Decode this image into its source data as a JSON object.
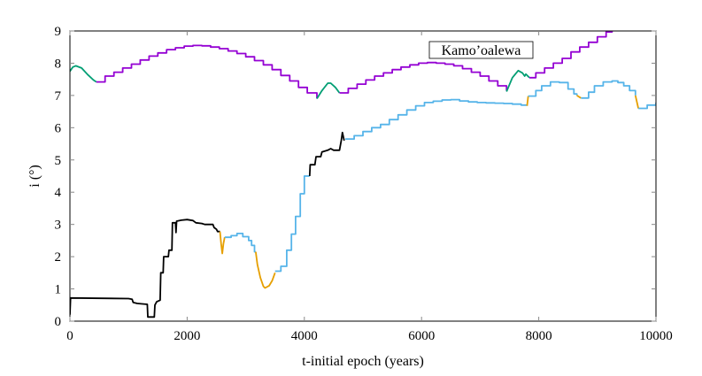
{
  "chart_data": {
    "type": "line",
    "title": "",
    "xlabel": "t-initial epoch (years)",
    "ylabel": "i (°)",
    "xlim": [
      0,
      10000
    ],
    "ylim": [
      0,
      9
    ],
    "xticks": [
      0,
      2000,
      4000,
      6000,
      8000,
      10000
    ],
    "yticks": [
      0,
      1,
      2,
      3,
      4,
      5,
      6,
      7,
      8,
      9
    ],
    "grid": false,
    "legend": {
      "text": "Kamo’oalewa",
      "placement": "top-center-right"
    },
    "colors": {
      "purple": "#9400d3",
      "green": "#009e73",
      "black": "#000000",
      "orange": "#e69f00",
      "blue": "#56b4e9"
    },
    "segments": [
      {
        "color": "green",
        "step": false,
        "points": [
          [
            0,
            7.75
          ],
          [
            50,
            7.88
          ],
          [
            100,
            7.92
          ],
          [
            200,
            7.85
          ],
          [
            300,
            7.65
          ],
          [
            400,
            7.48
          ],
          [
            450,
            7.42
          ]
        ]
      },
      {
        "color": "purple",
        "step": true,
        "points": [
          [
            450,
            7.42
          ],
          [
            600,
            7.6
          ],
          [
            750,
            7.72
          ],
          [
            900,
            7.85
          ],
          [
            1050,
            7.97
          ],
          [
            1200,
            8.1
          ],
          [
            1350,
            8.22
          ],
          [
            1500,
            8.32
          ],
          [
            1650,
            8.42
          ],
          [
            1800,
            8.48
          ],
          [
            1950,
            8.53
          ],
          [
            2100,
            8.55
          ],
          [
            2250,
            8.54
          ],
          [
            2400,
            8.5
          ],
          [
            2550,
            8.45
          ],
          [
            2700,
            8.38
          ],
          [
            2850,
            8.3
          ],
          [
            3000,
            8.2
          ],
          [
            3150,
            8.08
          ],
          [
            3300,
            7.95
          ],
          [
            3450,
            7.8
          ],
          [
            3600,
            7.62
          ],
          [
            3750,
            7.45
          ],
          [
            3900,
            7.25
          ],
          [
            4050,
            7.08
          ],
          [
            4215,
            6.9
          ]
        ]
      },
      {
        "color": "green",
        "step": false,
        "points": [
          [
            4215,
            6.9
          ],
          [
            4300,
            7.15
          ],
          [
            4400,
            7.38
          ],
          [
            4450,
            7.38
          ],
          [
            4530,
            7.25
          ],
          [
            4600,
            7.08
          ]
        ]
      },
      {
        "color": "purple",
        "step": true,
        "points": [
          [
            4600,
            7.08
          ],
          [
            4750,
            7.22
          ],
          [
            4900,
            7.35
          ],
          [
            5050,
            7.48
          ],
          [
            5200,
            7.6
          ],
          [
            5350,
            7.7
          ],
          [
            5500,
            7.8
          ],
          [
            5650,
            7.88
          ],
          [
            5800,
            7.95
          ],
          [
            5950,
            8.0
          ],
          [
            6100,
            8.02
          ],
          [
            6250,
            8.0
          ],
          [
            6400,
            7.97
          ],
          [
            6550,
            7.92
          ],
          [
            6700,
            7.83
          ],
          [
            6850,
            7.72
          ],
          [
            7000,
            7.6
          ],
          [
            7150,
            7.45
          ],
          [
            7300,
            7.3
          ],
          [
            7450,
            7.15
          ]
        ]
      },
      {
        "color": "green",
        "step": false,
        "points": [
          [
            7450,
            7.12
          ],
          [
            7550,
            7.55
          ],
          [
            7650,
            7.77
          ],
          [
            7720,
            7.7
          ],
          [
            7760,
            7.6
          ],
          [
            7780,
            7.66
          ],
          [
            7840,
            7.55
          ]
        ]
      },
      {
        "color": "purple",
        "step": true,
        "points": [
          [
            7840,
            7.55
          ],
          [
            7950,
            7.7
          ],
          [
            8100,
            7.85
          ],
          [
            8250,
            8.0
          ],
          [
            8400,
            8.15
          ],
          [
            8550,
            8.35
          ],
          [
            8700,
            8.5
          ],
          [
            8850,
            8.65
          ],
          [
            9000,
            8.82
          ],
          [
            9150,
            8.97
          ],
          [
            9250,
            9.1
          ]
        ]
      },
      {
        "color": "black",
        "step": false,
        "points": [
          [
            0,
            0.2
          ],
          [
            10,
            0.72
          ],
          [
            1000,
            0.7
          ],
          [
            1060,
            0.68
          ],
          [
            1080,
            0.58
          ],
          [
            1150,
            0.55
          ],
          [
            1320,
            0.52
          ],
          [
            1330,
            0.13
          ],
          [
            1440,
            0.13
          ],
          [
            1450,
            0.5
          ],
          [
            1480,
            0.6
          ],
          [
            1540,
            0.65
          ],
          [
            1550,
            1.5
          ],
          [
            1590,
            1.5
          ],
          [
            1600,
            2.0
          ],
          [
            1680,
            2.0
          ],
          [
            1690,
            2.2
          ],
          [
            1740,
            2.2
          ],
          [
            1750,
            3.05
          ],
          [
            1800,
            3.05
          ],
          [
            1810,
            2.75
          ],
          [
            1820,
            3.1
          ],
          [
            1900,
            3.13
          ],
          [
            2000,
            3.15
          ],
          [
            2100,
            3.12
          ],
          [
            2150,
            3.05
          ],
          [
            2250,
            3.03
          ],
          [
            2300,
            3.0
          ],
          [
            2440,
            3.0
          ],
          [
            2460,
            2.9
          ],
          [
            2500,
            2.85
          ],
          [
            2520,
            2.78
          ],
          [
            2560,
            2.78
          ]
        ]
      },
      {
        "color": "orange",
        "step": false,
        "points": [
          [
            2560,
            2.78
          ],
          [
            2580,
            2.4
          ],
          [
            2600,
            2.1
          ],
          [
            2620,
            2.4
          ],
          [
            2640,
            2.6
          ]
        ]
      },
      {
        "color": "blue",
        "step": true,
        "points": [
          [
            2640,
            2.6
          ],
          [
            2750,
            2.65
          ],
          [
            2850,
            2.72
          ],
          [
            2950,
            2.62
          ],
          [
            3050,
            2.5
          ],
          [
            3100,
            2.35
          ],
          [
            3150,
            2.15
          ],
          [
            3170,
            2.15
          ]
        ]
      },
      {
        "color": "orange",
        "step": false,
        "points": [
          [
            3170,
            2.15
          ],
          [
            3200,
            1.75
          ],
          [
            3250,
            1.35
          ],
          [
            3300,
            1.08
          ],
          [
            3330,
            1.03
          ],
          [
            3400,
            1.1
          ],
          [
            3450,
            1.25
          ],
          [
            3500,
            1.5
          ]
        ]
      },
      {
        "color": "blue",
        "step": true,
        "points": [
          [
            3500,
            1.55
          ],
          [
            3600,
            1.7
          ],
          [
            3700,
            2.2
          ],
          [
            3780,
            2.7
          ],
          [
            3850,
            3.25
          ],
          [
            3930,
            3.95
          ],
          [
            4000,
            4.5
          ],
          [
            4090,
            4.5
          ]
        ]
      },
      {
        "color": "black",
        "step": false,
        "points": [
          [
            4090,
            4.5
          ],
          [
            4100,
            4.85
          ],
          [
            4180,
            4.85
          ],
          [
            4200,
            5.1
          ],
          [
            4280,
            5.1
          ],
          [
            4300,
            5.25
          ],
          [
            4400,
            5.3
          ],
          [
            4450,
            5.35
          ],
          [
            4500,
            5.3
          ],
          [
            4600,
            5.3
          ],
          [
            4630,
            5.6
          ],
          [
            4650,
            5.85
          ],
          [
            4680,
            5.6
          ]
        ]
      },
      {
        "color": "blue",
        "step": true,
        "points": [
          [
            4700,
            5.65
          ],
          [
            4850,
            5.75
          ],
          [
            5000,
            5.88
          ],
          [
            5150,
            6.0
          ],
          [
            5300,
            6.1
          ],
          [
            5450,
            6.25
          ],
          [
            5600,
            6.4
          ],
          [
            5750,
            6.55
          ],
          [
            5900,
            6.68
          ],
          [
            6050,
            6.78
          ],
          [
            6200,
            6.82
          ],
          [
            6350,
            6.86
          ],
          [
            6500,
            6.87
          ],
          [
            6650,
            6.83
          ],
          [
            6800,
            6.8
          ],
          [
            6950,
            6.78
          ],
          [
            7100,
            6.77
          ],
          [
            7250,
            6.76
          ],
          [
            7400,
            6.75
          ],
          [
            7550,
            6.73
          ],
          [
            7700,
            6.7
          ],
          [
            7800,
            6.68
          ]
        ]
      },
      {
        "color": "orange",
        "step": false,
        "points": [
          [
            7800,
            6.68
          ],
          [
            7820,
            6.98
          ]
        ]
      },
      {
        "color": "blue",
        "step": true,
        "points": [
          [
            7820,
            6.98
          ],
          [
            7950,
            7.15
          ],
          [
            8050,
            7.3
          ],
          [
            8200,
            7.42
          ],
          [
            8350,
            7.4
          ],
          [
            8500,
            7.2
          ],
          [
            8600,
            7.05
          ],
          [
            8650,
            7.0
          ]
        ]
      },
      {
        "color": "orange",
        "step": false,
        "points": [
          [
            8650,
            7.0
          ],
          [
            8720,
            6.92
          ]
        ]
      },
      {
        "color": "blue",
        "step": true,
        "points": [
          [
            8720,
            6.92
          ],
          [
            8850,
            7.1
          ],
          [
            8950,
            7.3
          ],
          [
            9100,
            7.42
          ],
          [
            9250,
            7.45
          ],
          [
            9350,
            7.4
          ],
          [
            9450,
            7.3
          ],
          [
            9550,
            7.15
          ],
          [
            9650,
            7.0
          ]
        ]
      },
      {
        "color": "orange",
        "step": false,
        "points": [
          [
            9650,
            7.0
          ],
          [
            9700,
            6.6
          ]
        ]
      },
      {
        "color": "blue",
        "step": true,
        "points": [
          [
            9700,
            6.6
          ],
          [
            9850,
            6.7
          ],
          [
            10000,
            6.78
          ]
        ]
      }
    ]
  }
}
